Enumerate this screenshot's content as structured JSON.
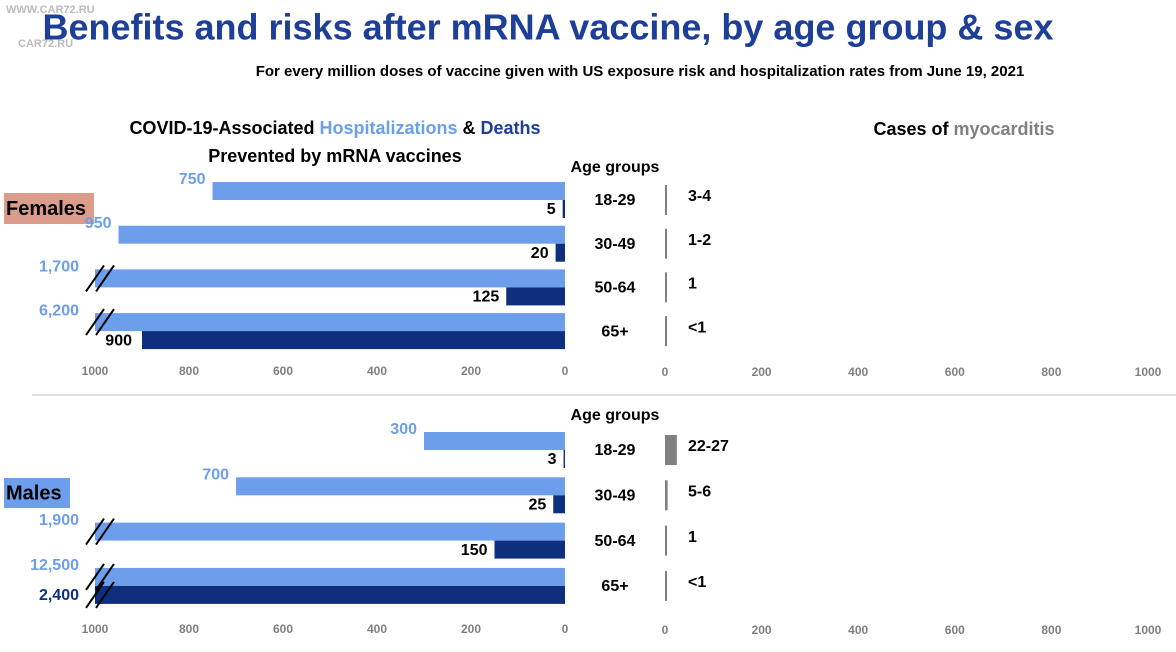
{
  "watermark": [
    "WWW.CAR72.RU",
    "CAR72.RU"
  ],
  "title": "Benefits and risks after mRNA vaccine, by age group & sex",
  "subtitle": "For every million doses of vaccine given with US exposure risk and hospitalization rates from June 19, 2021",
  "left_heading": {
    "start": "COVID-19-Associated",
    "joiner": "&",
    "line2": "Prevented by mRNA vaccines"
  },
  "right_heading": "Cases of",
  "chart_data": [
    {
      "type": "bar",
      "panel_label": "Females",
      "axis_label": "Age groups",
      "categories": [
        "18-29",
        "30-49",
        "50-64",
        "65+"
      ],
      "series": [
        {
          "name": "Hospitalizations",
          "color": "#6d9eeb",
          "values": [
            750,
            950,
            1700,
            6200
          ],
          "value_labels": [
            "750",
            "950",
            "1,700",
            "6,200"
          ]
        },
        {
          "name": "Deaths",
          "color": "#0e2f7e",
          "values": [
            5,
            20,
            125,
            900
          ]
        }
      ],
      "xlim": [
        1000,
        0
      ],
      "xticks": [
        1000,
        800,
        600,
        400,
        200,
        0
      ]
    },
    {
      "type": "bar",
      "series": [
        {
          "name": "myocarditis",
          "color": "#808080",
          "values": [
            3.5,
            1.5,
            1,
            0.5
          ],
          "value_labels": [
            "3-4",
            "1-2",
            "1",
            "<1"
          ]
        }
      ],
      "xlim": [
        0,
        1000
      ],
      "xticks": [
        0,
        200,
        400,
        600,
        800,
        1000
      ]
    },
    {
      "type": "bar",
      "panel_label": "Males",
      "axis_label": "Age groups",
      "categories": [
        "18-29",
        "30-49",
        "50-64",
        "65+"
      ],
      "series": [
        {
          "color": "#6d9eeb",
          "values": [
            300,
            700,
            1900,
            12500
          ],
          "value_labels": [
            "300",
            "700",
            "1,900",
            "12,500"
          ]
        },
        {
          "color": "#0e2f7e",
          "values": [
            3,
            25,
            150,
            2400
          ],
          "value_labels": [
            "3",
            "25",
            "150",
            "2,400"
          ]
        }
      ],
      "xlim": [
        1000,
        0
      ],
      "xticks": [
        1000,
        800,
        600,
        400,
        200,
        0
      ]
    },
    {
      "type": "bar",
      "series": [
        {
          "color": "#808080",
          "values": [
            24.5,
            5.5,
            1,
            0.5
          ],
          "value_labels": [
            "22-27",
            "5-6",
            "1",
            "<1"
          ]
        }
      ],
      "xlim": [
        0,
        1000
      ],
      "xticks": [
        0,
        200,
        400,
        600,
        800,
        1000
      ]
    }
  ]
}
